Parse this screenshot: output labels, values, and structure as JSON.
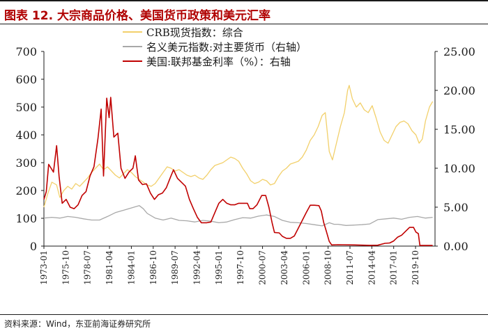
{
  "header": {
    "title": "图表 12. 大宗商品价格、美国货币政策和美元汇率"
  },
  "footer": {
    "source": "资料来源：Wind，东亚前海证券研究所"
  },
  "chart_data": {
    "type": "line",
    "title": "图表 12. 大宗商品价格、美国货币政策和美元汇率",
    "x_ticks": [
      "1973-01",
      "1975-10",
      "1978-07",
      "1981-04",
      "1984-01",
      "1986-10",
      "1989-07",
      "1992-04",
      "1995-01",
      "1997-10",
      "2000-07",
      "2003-04",
      "2006-01",
      "2008-10",
      "2011-07",
      "2014-04",
      "2017-01",
      "2019-10"
    ],
    "x_range": [
      1973.0,
      2022.2
    ],
    "y_left": {
      "range": [
        0,
        700
      ],
      "ticks": [
        "0",
        "100",
        "200",
        "300",
        "400",
        "500",
        "600",
        "700"
      ]
    },
    "y_right": {
      "range": [
        0,
        25
      ],
      "ticks": [
        "0.00",
        "5.00",
        "10.00",
        "15.00",
        "20.00",
        "25.00"
      ]
    },
    "legend": {
      "placement": "top-center"
    },
    "series": [
      {
        "name": "CRB现货指数：综合",
        "axis": "left",
        "color": "#f2d06b",
        "points": [
          [
            1973.0,
            140
          ],
          [
            1973.5,
            190
          ],
          [
            1974.0,
            230
          ],
          [
            1974.6,
            220
          ],
          [
            1975.0,
            175
          ],
          [
            1975.5,
            200
          ],
          [
            1976.0,
            215
          ],
          [
            1976.5,
            205
          ],
          [
            1977.0,
            225
          ],
          [
            1977.5,
            215
          ],
          [
            1978.0,
            230
          ],
          [
            1978.5,
            245
          ],
          [
            1979.0,
            265
          ],
          [
            1979.5,
            280
          ],
          [
            1980.0,
            295
          ],
          [
            1980.5,
            275
          ],
          [
            1981.0,
            285
          ],
          [
            1981.5,
            270
          ],
          [
            1982.0,
            255
          ],
          [
            1982.5,
            245
          ],
          [
            1983.0,
            260
          ],
          [
            1983.5,
            275
          ],
          [
            1984.0,
            265
          ],
          [
            1984.5,
            250
          ],
          [
            1985.0,
            240
          ],
          [
            1985.5,
            230
          ],
          [
            1986.0,
            220
          ],
          [
            1986.5,
            215
          ],
          [
            1987.0,
            225
          ],
          [
            1987.5,
            245
          ],
          [
            1988.0,
            265
          ],
          [
            1988.5,
            285
          ],
          [
            1989.0,
            280
          ],
          [
            1989.5,
            270
          ],
          [
            1990.0,
            275
          ],
          [
            1990.5,
            265
          ],
          [
            1991.0,
            255
          ],
          [
            1991.5,
            250
          ],
          [
            1992.0,
            255
          ],
          [
            1992.5,
            245
          ],
          [
            1993.0,
            240
          ],
          [
            1993.5,
            255
          ],
          [
            1994.0,
            275
          ],
          [
            1994.5,
            290
          ],
          [
            1995.0,
            295
          ],
          [
            1995.5,
            300
          ],
          [
            1996.0,
            310
          ],
          [
            1996.5,
            320
          ],
          [
            1997.0,
            315
          ],
          [
            1997.5,
            305
          ],
          [
            1998.0,
            280
          ],
          [
            1998.5,
            260
          ],
          [
            1999.0,
            235
          ],
          [
            1999.5,
            225
          ],
          [
            2000.0,
            230
          ],
          [
            2000.5,
            240
          ],
          [
            2001.0,
            235
          ],
          [
            2001.5,
            220
          ],
          [
            2002.0,
            225
          ],
          [
            2002.5,
            250
          ],
          [
            2003.0,
            270
          ],
          [
            2003.5,
            280
          ],
          [
            2004.0,
            295
          ],
          [
            2004.5,
            300
          ],
          [
            2005.0,
            305
          ],
          [
            2005.5,
            320
          ],
          [
            2006.0,
            345
          ],
          [
            2006.5,
            380
          ],
          [
            2007.0,
            400
          ],
          [
            2007.5,
            430
          ],
          [
            2008.0,
            470
          ],
          [
            2008.4,
            480
          ],
          [
            2008.9,
            340
          ],
          [
            2009.3,
            310
          ],
          [
            2009.8,
            370
          ],
          [
            2010.3,
            430
          ],
          [
            2010.8,
            480
          ],
          [
            2011.2,
            560
          ],
          [
            2011.4,
            578
          ],
          [
            2011.8,
            530
          ],
          [
            2012.3,
            500
          ],
          [
            2012.8,
            515
          ],
          [
            2013.3,
            490
          ],
          [
            2013.8,
            480
          ],
          [
            2014.3,
            505
          ],
          [
            2014.8,
            460
          ],
          [
            2015.3,
            410
          ],
          [
            2015.8,
            380
          ],
          [
            2016.3,
            370
          ],
          [
            2016.8,
            400
          ],
          [
            2017.3,
            430
          ],
          [
            2017.8,
            445
          ],
          [
            2018.3,
            450
          ],
          [
            2018.8,
            440
          ],
          [
            2019.3,
            415
          ],
          [
            2019.8,
            400
          ],
          [
            2020.2,
            370
          ],
          [
            2020.6,
            385
          ],
          [
            2021.0,
            450
          ],
          [
            2021.5,
            500
          ],
          [
            2021.9,
            520
          ]
        ]
      },
      {
        "name": "名义美元指数:对主要货币（右轴）",
        "axis": "right",
        "color": "#a8a8a8",
        "points": [
          [
            1973.0,
            3.6
          ],
          [
            1974.0,
            3.7
          ],
          [
            1975.0,
            3.6
          ],
          [
            1976.0,
            3.8
          ],
          [
            1977.0,
            3.7
          ],
          [
            1978.0,
            3.5
          ],
          [
            1979.0,
            3.35
          ],
          [
            1980.0,
            3.35
          ],
          [
            1981.0,
            3.8
          ],
          [
            1982.0,
            4.3
          ],
          [
            1983.0,
            4.6
          ],
          [
            1984.0,
            4.9
          ],
          [
            1985.0,
            5.2
          ],
          [
            1985.5,
            4.8
          ],
          [
            1986.0,
            4.2
          ],
          [
            1987.0,
            3.6
          ],
          [
            1988.0,
            3.35
          ],
          [
            1989.0,
            3.6
          ],
          [
            1990.0,
            3.3
          ],
          [
            1991.0,
            3.25
          ],
          [
            1992.0,
            3.1
          ],
          [
            1993.0,
            3.3
          ],
          [
            1994.0,
            3.2
          ],
          [
            1995.0,
            3.0
          ],
          [
            1996.0,
            3.1
          ],
          [
            1997.0,
            3.4
          ],
          [
            1998.0,
            3.65
          ],
          [
            1999.0,
            3.6
          ],
          [
            2000.0,
            3.85
          ],
          [
            2001.0,
            4.0
          ],
          [
            2002.0,
            3.8
          ],
          [
            2003.0,
            3.3
          ],
          [
            2004.0,
            3.05
          ],
          [
            2005.0,
            3.0
          ],
          [
            2006.0,
            2.9
          ],
          [
            2007.0,
            2.75
          ],
          [
            2008.0,
            2.6
          ],
          [
            2008.9,
            3.0
          ],
          [
            2009.5,
            2.8
          ],
          [
            2010.0,
            2.8
          ],
          [
            2011.0,
            2.65
          ],
          [
            2012.0,
            2.7
          ],
          [
            2013.0,
            2.75
          ],
          [
            2014.0,
            2.85
          ],
          [
            2015.0,
            3.4
          ],
          [
            2016.0,
            3.5
          ],
          [
            2017.0,
            3.6
          ],
          [
            2018.0,
            3.45
          ],
          [
            2019.0,
            3.7
          ],
          [
            2020.0,
            3.8
          ],
          [
            2021.0,
            3.6
          ],
          [
            2021.9,
            3.7
          ]
        ]
      },
      {
        "name": "美国:联邦基金利率（%）：右轴",
        "axis": "right",
        "color": "#c00000",
        "points": [
          [
            1973.0,
            6.0
          ],
          [
            1973.3,
            7.0
          ],
          [
            1973.6,
            10.5
          ],
          [
            1973.9,
            10.0
          ],
          [
            1974.2,
            9.5
          ],
          [
            1974.6,
            12.9
          ],
          [
            1974.9,
            9.0
          ],
          [
            1975.3,
            5.5
          ],
          [
            1975.8,
            6.0
          ],
          [
            1976.3,
            5.0
          ],
          [
            1976.8,
            4.8
          ],
          [
            1977.3,
            5.3
          ],
          [
            1977.8,
            6.5
          ],
          [
            1978.3,
            7.0
          ],
          [
            1978.8,
            9.0
          ],
          [
            1979.3,
            10.2
          ],
          [
            1979.8,
            13.8
          ],
          [
            1980.2,
            17.6
          ],
          [
            1980.5,
            9.0
          ],
          [
            1980.9,
            19.0
          ],
          [
            1981.2,
            16.5
          ],
          [
            1981.4,
            19.1
          ],
          [
            1981.8,
            14.0
          ],
          [
            1982.3,
            14.5
          ],
          [
            1982.7,
            10.0
          ],
          [
            1983.2,
            8.7
          ],
          [
            1983.7,
            9.5
          ],
          [
            1984.2,
            10.0
          ],
          [
            1984.5,
            11.6
          ],
          [
            1984.9,
            8.5
          ],
          [
            1985.4,
            7.9
          ],
          [
            1985.9,
            8.0
          ],
          [
            1986.4,
            6.8
          ],
          [
            1986.9,
            6.0
          ],
          [
            1987.4,
            6.6
          ],
          [
            1987.9,
            6.8
          ],
          [
            1988.4,
            7.5
          ],
          [
            1988.9,
            8.8
          ],
          [
            1989.3,
            9.8
          ],
          [
            1989.8,
            8.7
          ],
          [
            1990.3,
            8.2
          ],
          [
            1990.8,
            7.7
          ],
          [
            1991.3,
            6.0
          ],
          [
            1991.8,
            4.8
          ],
          [
            1992.3,
            3.7
          ],
          [
            1992.8,
            3.0
          ],
          [
            1993.5,
            3.0
          ],
          [
            1994.0,
            3.1
          ],
          [
            1994.5,
            4.3
          ],
          [
            1995.0,
            5.5
          ],
          [
            1995.5,
            6.0
          ],
          [
            1996.0,
            5.5
          ],
          [
            1996.5,
            5.3
          ],
          [
            1997.0,
            5.3
          ],
          [
            1997.5,
            5.5
          ],
          [
            1998.0,
            5.5
          ],
          [
            1998.6,
            5.5
          ],
          [
            1998.9,
            4.8
          ],
          [
            1999.3,
            4.8
          ],
          [
            1999.8,
            5.3
          ],
          [
            2000.4,
            6.5
          ],
          [
            2000.9,
            6.5
          ],
          [
            2001.3,
            5.0
          ],
          [
            2001.7,
            3.0
          ],
          [
            2002.0,
            1.75
          ],
          [
            2002.6,
            1.7
          ],
          [
            2003.0,
            1.25
          ],
          [
            2003.5,
            1.0
          ],
          [
            2004.0,
            1.0
          ],
          [
            2004.5,
            1.3
          ],
          [
            2005.0,
            2.3
          ],
          [
            2005.5,
            3.3
          ],
          [
            2006.0,
            4.3
          ],
          [
            2006.5,
            5.25
          ],
          [
            2007.0,
            5.25
          ],
          [
            2007.6,
            5.2
          ],
          [
            2007.9,
            4.5
          ],
          [
            2008.2,
            3.0
          ],
          [
            2008.5,
            2.0
          ],
          [
            2008.9,
            0.6
          ],
          [
            2009.2,
            0.15
          ],
          [
            2010.0,
            0.18
          ],
          [
            2012.0,
            0.15
          ],
          [
            2014.0,
            0.1
          ],
          [
            2015.0,
            0.12
          ],
          [
            2015.9,
            0.36
          ],
          [
            2016.5,
            0.4
          ],
          [
            2017.0,
            0.66
          ],
          [
            2017.5,
            1.15
          ],
          [
            2018.0,
            1.4
          ],
          [
            2018.5,
            1.9
          ],
          [
            2019.0,
            2.4
          ],
          [
            2019.5,
            2.4
          ],
          [
            2019.8,
            1.8
          ],
          [
            2020.1,
            1.6
          ],
          [
            2020.3,
            0.08
          ],
          [
            2021.0,
            0.08
          ],
          [
            2021.9,
            0.08
          ]
        ]
      }
    ]
  }
}
